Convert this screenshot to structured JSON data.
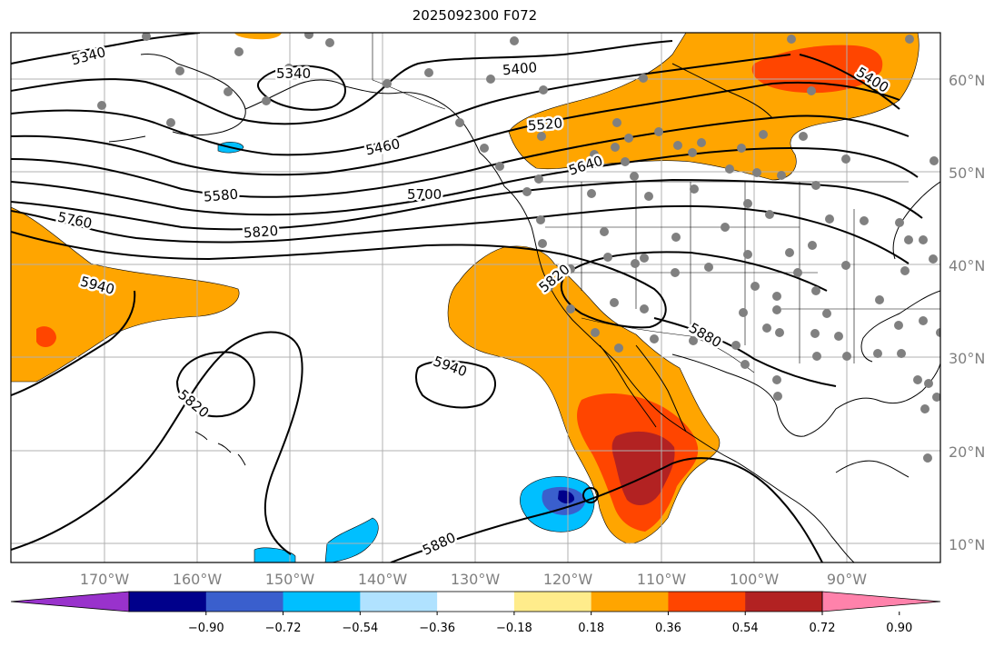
{
  "title": "2025092300 F072",
  "lat_labels": [
    {
      "id": "60",
      "text": "60°N"
    },
    {
      "id": "50",
      "text": "50°N"
    },
    {
      "id": "40",
      "text": "40°N"
    },
    {
      "id": "30",
      "text": "30°N"
    },
    {
      "id": "20",
      "text": "20°N"
    },
    {
      "id": "10",
      "text": "10°N"
    }
  ],
  "lon_labels": [
    {
      "id": "170w",
      "text": "170°W"
    },
    {
      "id": "160w",
      "text": "160°W"
    },
    {
      "id": "150w",
      "text": "150°W"
    },
    {
      "id": "140w",
      "text": "140°W"
    },
    {
      "id": "130w",
      "text": "130°W"
    },
    {
      "id": "120w",
      "text": "120°W"
    },
    {
      "id": "110w",
      "text": "110°W"
    },
    {
      "id": "100w",
      "text": "100°W"
    },
    {
      "id": "90w",
      "text": "90°W"
    }
  ],
  "contour_labels": [
    {
      "id": "5340",
      "text": "5340"
    },
    {
      "id": "5340b",
      "text": "5340"
    },
    {
      "id": "5400",
      "text": "5400"
    },
    {
      "id": "5400b",
      "text": "5400"
    },
    {
      "id": "5460",
      "text": "5460"
    },
    {
      "id": "5520",
      "text": "5520"
    },
    {
      "id": "5580",
      "text": "5580"
    },
    {
      "id": "5640",
      "text": "5640"
    },
    {
      "id": "5700",
      "text": "5700"
    },
    {
      "id": "5760",
      "text": "5760"
    },
    {
      "id": "5820a",
      "text": "5820"
    },
    {
      "id": "5820b",
      "text": "5820"
    },
    {
      "id": "5820c",
      "text": "5820"
    },
    {
      "id": "5880a",
      "text": "5880"
    },
    {
      "id": "5880b",
      "text": "5880"
    },
    {
      "id": "5940a",
      "text": "5940"
    },
    {
      "id": "5940b",
      "text": "5940"
    }
  ],
  "colorbar": {
    "colors": [
      "#9932cc",
      "#00008b",
      "#3a5fcd",
      "#00bfff",
      "#b0e2ff",
      "#ffffff",
      "#ffec8b",
      "#ffa500",
      "#ff4500",
      "#b22222",
      "#ff82ab"
    ],
    "ticks": [
      "−0.90",
      "−0.72",
      "−0.54",
      "−0.36",
      "−0.18",
      "0.18",
      "0.36",
      "0.54",
      "0.72",
      "0.90"
    ]
  },
  "colors": {
    "grid": "#b0b0b0",
    "contour": "#000000",
    "coast": "#000000",
    "station": "#808080",
    "anomaly_pos_1": "#ffa500",
    "anomaly_pos_2": "#ff4500",
    "anomaly_pos_3": "#b22222",
    "anomaly_neg_1": "#00bfff",
    "anomaly_neg_2": "#3a5fcd",
    "anomaly_neg_3": "#00008b"
  }
}
